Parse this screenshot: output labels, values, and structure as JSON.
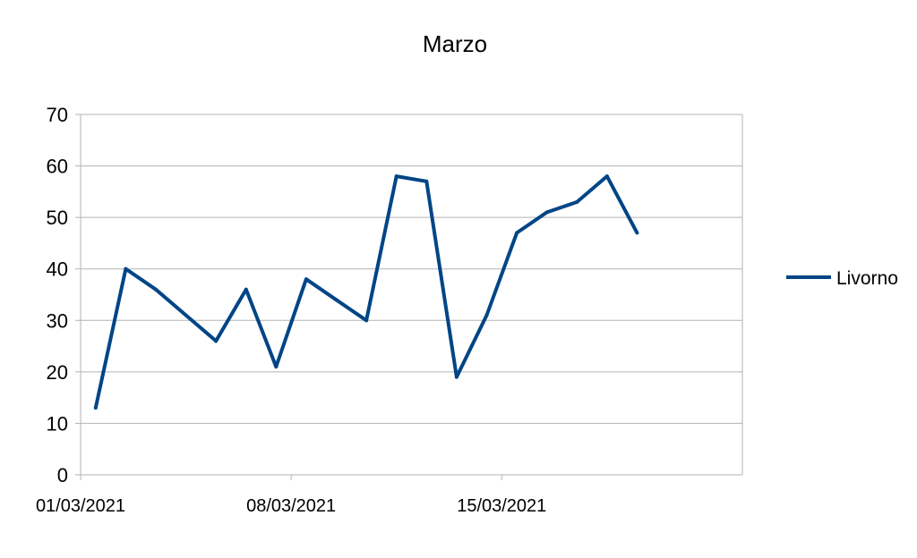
{
  "chart_data": {
    "type": "line",
    "title": "Marzo",
    "xlabel": "",
    "ylabel": "",
    "x_start": "01/03/2021",
    "x_end": "22/03/2021",
    "ylim": [
      0,
      70
    ],
    "y_ticks": [
      0,
      10,
      20,
      30,
      40,
      50,
      60,
      70
    ],
    "x_tick_labels": [
      "01/03/2021",
      "08/03/2021",
      "15/03/2021"
    ],
    "grid": true,
    "legend_position": "right",
    "series": [
      {
        "name": "Livorno",
        "color": "#004586",
        "x": [
          "01/03/2021",
          "02/03/2021",
          "03/03/2021",
          "04/03/2021",
          "05/03/2021",
          "06/03/2021",
          "07/03/2021",
          "08/03/2021",
          "09/03/2021",
          "10/03/2021",
          "11/03/2021",
          "12/03/2021",
          "13/03/2021",
          "14/03/2021",
          "15/03/2021",
          "16/03/2021",
          "17/03/2021",
          "18/03/2021",
          "19/03/2021"
        ],
        "values": [
          13,
          40,
          36,
          31,
          26,
          36,
          21,
          38,
          34,
          30,
          58,
          57,
          19,
          31,
          47,
          51,
          53,
          58,
          47
        ]
      }
    ]
  }
}
